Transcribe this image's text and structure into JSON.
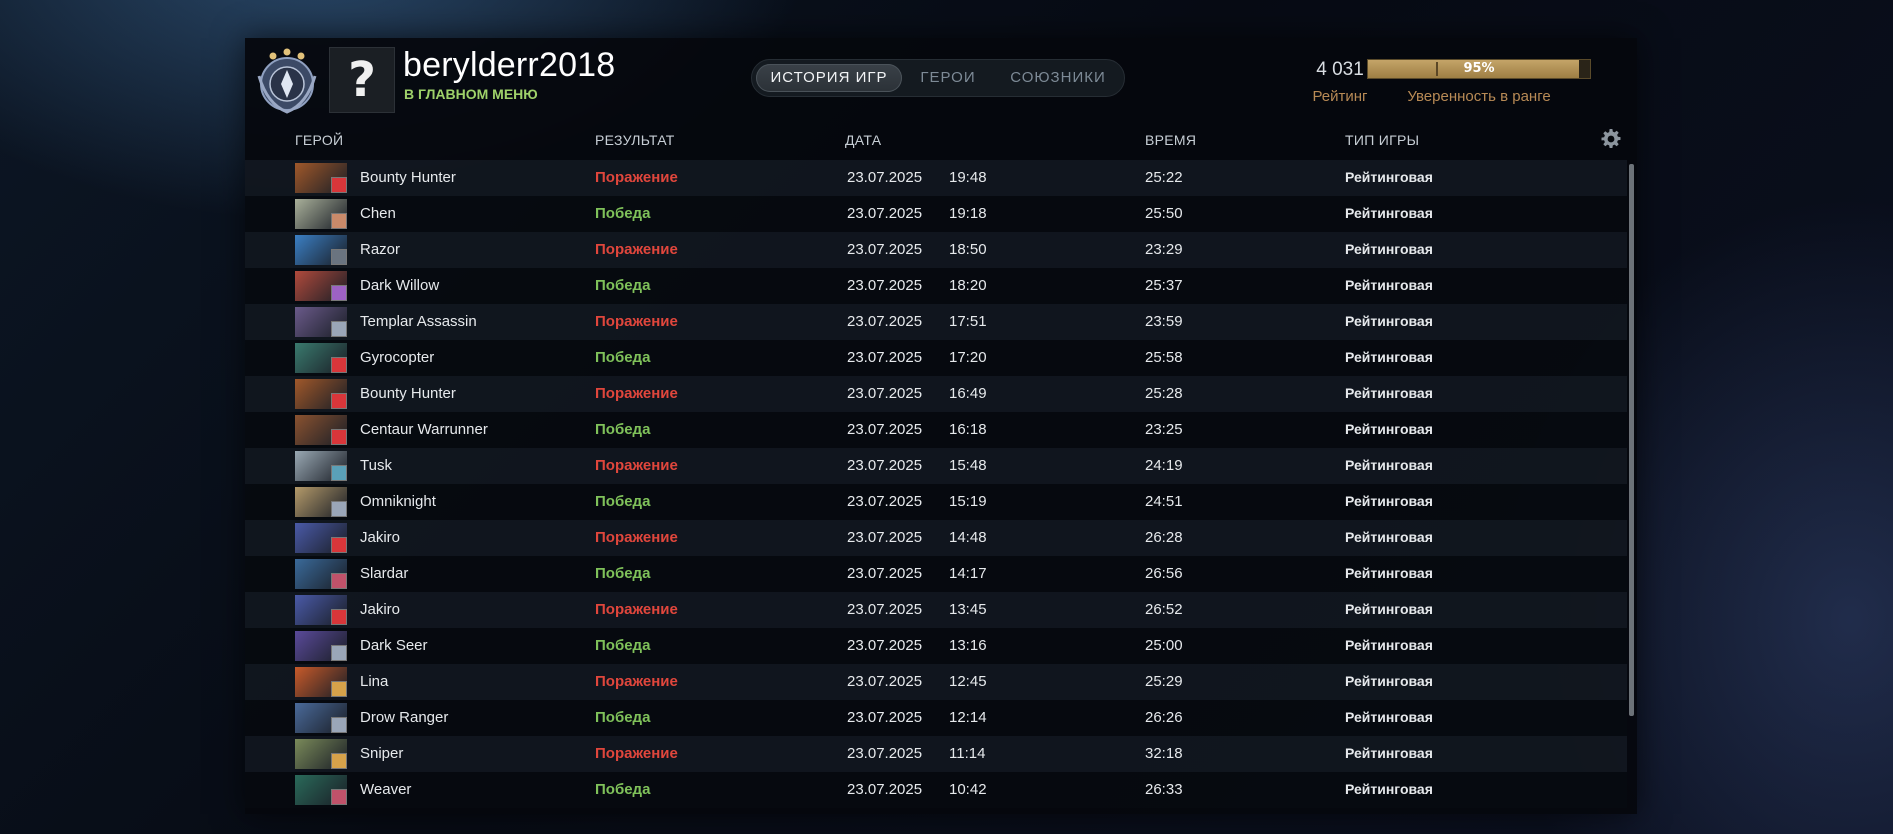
{
  "header": {
    "username": "berylderr2018",
    "main_menu_link": "В ГЛАВНОМ МЕНЮ",
    "avatar_glyph": "?",
    "rating_value": "4 031",
    "rating_label": "Рейтинг",
    "confidence_percent": 95,
    "confidence_text": "95%",
    "confidence_label": "Уверенность в ранге"
  },
  "tabs": [
    {
      "label": "ИСТОРИЯ ИГР",
      "active": true
    },
    {
      "label": "ГЕРОИ",
      "active": false
    },
    {
      "label": "СОЮЗНИКИ",
      "active": false
    }
  ],
  "columns": {
    "hero": "ГЕРОЙ",
    "result": "РЕЗУЛЬТАТ",
    "date": "ДАТА",
    "time": "ВРЕМЯ",
    "type": "ТИП ИГРЫ"
  },
  "colors": {
    "win": "#7fc15a",
    "loss": "#e0463c",
    "accent": "#b88a55",
    "menu_link": "#9fd26a"
  },
  "matches": [
    {
      "hero": "Bounty Hunter",
      "result": "Поражение",
      "win": false,
      "date": "23.07.2025",
      "time": "19:48",
      "duration": "25:22",
      "type": "Рейтинговая",
      "portrait": "#a0582a",
      "attr": "#d8363a"
    },
    {
      "hero": "Chen",
      "result": "Победа",
      "win": true,
      "date": "23.07.2025",
      "time": "19:18",
      "duration": "25:50",
      "type": "Рейтинговая",
      "portrait": "#a9b09a",
      "attr": "#c98a6a"
    },
    {
      "hero": "Razor",
      "result": "Поражение",
      "win": false,
      "date": "23.07.2025",
      "time": "18:50",
      "duration": "23:29",
      "type": "Рейтинговая",
      "portrait": "#3b7fc4",
      "attr": "#6a7480"
    },
    {
      "hero": "Dark Willow",
      "result": "Победа",
      "win": true,
      "date": "23.07.2025",
      "time": "18:20",
      "duration": "25:37",
      "type": "Рейтинговая",
      "portrait": "#b04a3c",
      "attr": "#9d62c4"
    },
    {
      "hero": "Templar Assassin",
      "result": "Поражение",
      "win": false,
      "date": "23.07.2025",
      "time": "17:51",
      "duration": "23:59",
      "type": "Рейтинговая",
      "portrait": "#6a5a8a",
      "attr": "#9aa6b8"
    },
    {
      "hero": "Gyrocopter",
      "result": "Победа",
      "win": true,
      "date": "23.07.2025",
      "time": "17:20",
      "duration": "25:58",
      "type": "Рейтинговая",
      "portrait": "#3a7a6e",
      "attr": "#d8363a"
    },
    {
      "hero": "Bounty Hunter",
      "result": "Поражение",
      "win": false,
      "date": "23.07.2025",
      "time": "16:49",
      "duration": "25:28",
      "type": "Рейтинговая",
      "portrait": "#a0582a",
      "attr": "#d8363a"
    },
    {
      "hero": "Centaur Warrunner",
      "result": "Победа",
      "win": true,
      "date": "23.07.2025",
      "time": "16:18",
      "duration": "23:25",
      "type": "Рейтинговая",
      "portrait": "#8a5230",
      "attr": "#d8363a"
    },
    {
      "hero": "Tusk",
      "result": "Поражение",
      "win": false,
      "date": "23.07.2025",
      "time": "15:48",
      "duration": "24:19",
      "type": "Рейтинговая",
      "portrait": "#9aa9b4",
      "attr": "#5aa0b8"
    },
    {
      "hero": "Omniknight",
      "result": "Победа",
      "win": true,
      "date": "23.07.2025",
      "time": "15:19",
      "duration": "24:51",
      "type": "Рейтинговая",
      "portrait": "#b49a6a",
      "attr": "#9aa6b8"
    },
    {
      "hero": "Jakiro",
      "result": "Поражение",
      "win": false,
      "date": "23.07.2025",
      "time": "14:48",
      "duration": "26:28",
      "type": "Рейтинговая",
      "portrait": "#4a5aa8",
      "attr": "#d8363a"
    },
    {
      "hero": "Slardar",
      "result": "Победа",
      "win": true,
      "date": "23.07.2025",
      "time": "14:17",
      "duration": "26:56",
      "type": "Рейтинговая",
      "portrait": "#3a6a9a",
      "attr": "#c0526a"
    },
    {
      "hero": "Jakiro",
      "result": "Поражение",
      "win": false,
      "date": "23.07.2025",
      "time": "13:45",
      "duration": "26:52",
      "type": "Рейтинговая",
      "portrait": "#4a5aa8",
      "attr": "#d8363a"
    },
    {
      "hero": "Dark Seer",
      "result": "Победа",
      "win": true,
      "date": "23.07.2025",
      "time": "13:16",
      "duration": "25:00",
      "type": "Рейтинговая",
      "portrait": "#5a4a9a",
      "attr": "#9aa6b8"
    },
    {
      "hero": "Lina",
      "result": "Поражение",
      "win": false,
      "date": "23.07.2025",
      "time": "12:45",
      "duration": "25:29",
      "type": "Рейтинговая",
      "portrait": "#c85a2a",
      "attr": "#d6a24a"
    },
    {
      "hero": "Drow Ranger",
      "result": "Победа",
      "win": true,
      "date": "23.07.2025",
      "time": "12:14",
      "duration": "26:26",
      "type": "Рейтинговая",
      "portrait": "#4a6a9a",
      "attr": "#9aa6b8"
    },
    {
      "hero": "Sniper",
      "result": "Поражение",
      "win": false,
      "date": "23.07.2025",
      "time": "11:14",
      "duration": "32:18",
      "type": "Рейтинговая",
      "portrait": "#7a8a5a",
      "attr": "#d6a24a"
    },
    {
      "hero": "Weaver",
      "result": "Победа",
      "win": true,
      "date": "23.07.2025",
      "time": "10:42",
      "duration": "26:33",
      "type": "Рейтинговая",
      "portrait": "#2a6a5a",
      "attr": "#c0526a"
    }
  ]
}
